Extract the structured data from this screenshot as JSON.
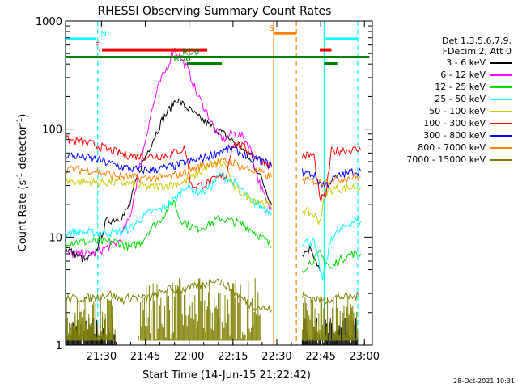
{
  "chart_data": {
    "type": "line",
    "title": "RHESSI Observing Summary Count Rates",
    "xlabel": "Start Time (14-Jun-15 21:22:42)",
    "ylabel": "Count Rate (s-1 detector-1)",
    "ylabel_parts": {
      "pre": "Count Rate (s",
      "sup1": "-1",
      "mid": " detector",
      "sup2": "-1",
      "post": ")"
    },
    "y_scale": "log",
    "ylim": [
      1,
      1000
    ],
    "xlim_min": [
      -5,
      100
    ],
    "x_ticks": [
      {
        "label": "21:30",
        "min": 7.3
      },
      {
        "label": "21:45",
        "min": 22.3
      },
      {
        "label": "22:00",
        "min": 37.3
      },
      {
        "label": "22:15",
        "min": 52.3
      },
      {
        "label": "22:30",
        "min": 67.3
      },
      {
        "label": "22:45",
        "min": 82.3
      },
      {
        "label": "23:00",
        "min": 97.3
      }
    ],
    "y_ticks": [
      "1",
      "10",
      "100",
      "1000"
    ],
    "legend_header": [
      "Det 1,3,5,6,7,9,",
      "FDecim 2, Att 0"
    ],
    "series": [
      {
        "name": "3 - 6 keV",
        "color": "#000000",
        "points": [
          [
            -5,
            8
          ],
          [
            2,
            6
          ],
          [
            5,
            7
          ],
          [
            7,
            10
          ],
          [
            9,
            14
          ],
          [
            13,
            15
          ],
          [
            15,
            16
          ],
          [
            17,
            20
          ],
          [
            20,
            40
          ],
          [
            24,
            70
          ],
          [
            28,
            120
          ],
          [
            31,
            160
          ],
          [
            33,
            190
          ],
          [
            35,
            170
          ],
          [
            37,
            155
          ],
          [
            40,
            130
          ],
          [
            44,
            110
          ],
          [
            48,
            95
          ],
          [
            52,
            78
          ],
          [
            55,
            70
          ],
          [
            58,
            52
          ],
          [
            61,
            40
          ],
          [
            64,
            26
          ],
          [
            65.5,
            20
          ],
          [
            76,
            7
          ],
          [
            79,
            8
          ],
          [
            82,
            5
          ]
        ]
      },
      {
        "name": "6 - 12 keV",
        "color": "#ff00ff",
        "points": [
          [
            -5,
            7
          ],
          [
            5,
            7
          ],
          [
            9,
            8
          ],
          [
            13,
            9
          ],
          [
            17,
            15
          ],
          [
            20,
            40
          ],
          [
            24,
            130
          ],
          [
            27,
            260
          ],
          [
            30,
            380
          ],
          [
            32,
            560
          ],
          [
            34,
            470
          ],
          [
            37,
            350
          ],
          [
            40,
            210
          ],
          [
            43,
            150
          ],
          [
            46,
            100
          ],
          [
            49,
            80
          ],
          [
            52,
            92
          ],
          [
            55,
            88
          ],
          [
            58,
            70
          ],
          [
            61,
            34
          ],
          [
            64,
            20
          ],
          [
            65.5,
            18
          ]
        ]
      },
      {
        "name": "12 - 25 keV",
        "color": "#00dd00",
        "points": [
          [
            -5,
            9
          ],
          [
            5,
            9
          ],
          [
            13,
            9
          ],
          [
            17,
            8
          ],
          [
            21,
            9
          ],
          [
            24,
            12
          ],
          [
            27,
            14
          ],
          [
            30,
            18
          ],
          [
            32,
            22
          ],
          [
            34,
            15
          ],
          [
            37,
            13
          ],
          [
            40,
            12
          ],
          [
            44,
            13
          ],
          [
            48,
            15
          ],
          [
            52,
            14
          ],
          [
            56,
            13
          ],
          [
            60,
            11
          ],
          [
            64,
            9
          ],
          [
            65.5,
            8
          ],
          [
            76,
            5
          ],
          [
            82,
            7
          ],
          [
            84,
            6
          ],
          [
            86,
            5
          ],
          [
            88,
            6
          ],
          [
            93,
            7
          ],
          [
            96,
            7
          ]
        ]
      },
      {
        "name": "25 - 50 keV",
        "color": "#00ffff",
        "points": [
          [
            -5,
            11
          ],
          [
            5,
            11
          ],
          [
            13,
            11
          ],
          [
            17,
            12
          ],
          [
            21,
            15
          ],
          [
            24,
            17
          ],
          [
            27,
            18
          ],
          [
            30,
            20
          ],
          [
            33,
            23
          ],
          [
            36,
            30
          ],
          [
            39,
            27
          ],
          [
            42,
            26
          ],
          [
            45,
            30
          ],
          [
            48,
            38
          ],
          [
            52,
            33
          ],
          [
            55,
            28
          ],
          [
            58,
            22
          ],
          [
            61,
            20
          ],
          [
            64,
            18
          ],
          [
            65.5,
            17
          ],
          [
            76,
            9
          ],
          [
            80,
            9
          ],
          [
            83,
            4
          ],
          [
            86,
            10
          ],
          [
            90,
            12
          ],
          [
            93,
            14
          ],
          [
            96,
            14
          ]
        ]
      },
      {
        "name": "50 - 100 keV",
        "color": "#cccc00",
        "points": [
          [
            -5,
            33
          ],
          [
            5,
            32
          ],
          [
            13,
            32
          ],
          [
            20,
            30
          ],
          [
            25,
            29
          ],
          [
            30,
            30
          ],
          [
            35,
            32
          ],
          [
            38,
            35
          ],
          [
            41,
            40
          ],
          [
            44,
            45
          ],
          [
            47,
            48
          ],
          [
            50,
            47
          ],
          [
            52,
            30
          ],
          [
            55,
            26
          ],
          [
            58,
            23
          ],
          [
            61,
            22
          ],
          [
            64,
            20
          ],
          [
            65.5,
            19
          ],
          [
            76,
            18
          ],
          [
            80,
            16
          ],
          [
            82,
            14
          ],
          [
            84,
            26
          ],
          [
            87,
            28
          ],
          [
            90,
            28
          ],
          [
            93,
            29
          ],
          [
            96,
            29
          ]
        ]
      },
      {
        "name": "100 - 300 keV",
        "color": "#ff0000",
        "points": [
          [
            -5,
            80
          ],
          [
            5,
            72
          ],
          [
            10,
            64
          ],
          [
            15,
            58
          ],
          [
            20,
            56
          ],
          [
            25,
            56
          ],
          [
            30,
            57
          ],
          [
            33,
            62
          ],
          [
            36,
            66
          ],
          [
            38,
            30
          ],
          [
            41,
            30
          ],
          [
            44,
            32
          ],
          [
            47,
            35
          ],
          [
            50,
            37
          ],
          [
            52,
            72
          ],
          [
            55,
            70
          ],
          [
            58,
            62
          ],
          [
            61,
            53
          ],
          [
            64,
            48
          ],
          [
            65.5,
            45
          ],
          [
            76,
            57
          ],
          [
            80,
            57
          ],
          [
            82,
            22
          ],
          [
            84,
            24
          ],
          [
            86,
            62
          ],
          [
            90,
            64
          ],
          [
            93,
            64
          ],
          [
            96,
            64
          ]
        ]
      },
      {
        "name": "300 - 800 keV",
        "color": "#0000ff",
        "points": [
          [
            -5,
            58
          ],
          [
            5,
            53
          ],
          [
            10,
            48
          ],
          [
            15,
            44
          ],
          [
            20,
            42
          ],
          [
            25,
            42
          ],
          [
            30,
            44
          ],
          [
            35,
            48
          ],
          [
            40,
            52
          ],
          [
            44,
            56
          ],
          [
            48,
            62
          ],
          [
            52,
            66
          ],
          [
            55,
            60
          ],
          [
            58,
            55
          ],
          [
            61,
            52
          ],
          [
            64,
            48
          ],
          [
            65.5,
            46
          ],
          [
            76,
            40
          ],
          [
            80,
            38
          ],
          [
            82,
            32
          ],
          [
            84,
            30
          ],
          [
            87,
            35
          ],
          [
            90,
            38
          ],
          [
            93,
            40
          ],
          [
            96,
            41
          ]
        ]
      },
      {
        "name": "800 - 7000 keV",
        "color": "#ff8000",
        "points": [
          [
            -5,
            43
          ],
          [
            5,
            41
          ],
          [
            10,
            38
          ],
          [
            15,
            36
          ],
          [
            20,
            35
          ],
          [
            25,
            35
          ],
          [
            30,
            36
          ],
          [
            35,
            39
          ],
          [
            40,
            44
          ],
          [
            44,
            48
          ],
          [
            48,
            50
          ],
          [
            52,
            50
          ],
          [
            55,
            45
          ],
          [
            58,
            42
          ],
          [
            61,
            40
          ],
          [
            64,
            37
          ],
          [
            65.5,
            36
          ],
          [
            76,
            34
          ],
          [
            80,
            33
          ],
          [
            82,
            32
          ],
          [
            84,
            33
          ],
          [
            87,
            34
          ],
          [
            90,
            35
          ],
          [
            93,
            36
          ],
          [
            96,
            36
          ]
        ]
      },
      {
        "name": "7000 - 15000 keV",
        "color": "#808000",
        "points": [
          [
            -5,
            2.7
          ],
          [
            2,
            2.7
          ],
          [
            6,
            2.8
          ],
          [
            10,
            3
          ],
          [
            14,
            2.6
          ],
          [
            18,
            2.8
          ],
          [
            22,
            2.7
          ],
          [
            26,
            2.9
          ],
          [
            30,
            3.3
          ],
          [
            34,
            3.2
          ],
          [
            38,
            3.4
          ],
          [
            42,
            3.6
          ],
          [
            46,
            4.1
          ],
          [
            50,
            3.6
          ],
          [
            54,
            2.9
          ],
          [
            58,
            2.4
          ],
          [
            62,
            2.2
          ],
          [
            65.5,
            2.1
          ],
          [
            76,
            2.9
          ],
          [
            80,
            2.7
          ],
          [
            84,
            2.6
          ],
          [
            88,
            2.8
          ],
          [
            92,
            2.8
          ],
          [
            96,
            2.8
          ]
        ]
      }
    ],
    "spikes": [
      {
        "color": "#000000",
        "start": -5,
        "end": 12,
        "low": 1,
        "high": 1.9
      },
      {
        "color": "#808000",
        "start": -5,
        "end": 12,
        "low": 1.1,
        "high": 2.9
      },
      {
        "color": "#808000",
        "start": 20,
        "end": 62,
        "low": 1.1,
        "high": 4.2
      },
      {
        "color": "#000000",
        "start": 76,
        "end": 95,
        "low": 1,
        "high": 1.8
      },
      {
        "color": "#808000",
        "start": 76,
        "end": 95,
        "low": 1.1,
        "high": 3.0
      }
    ],
    "flags": [
      {
        "label": "N",
        "color": "#00ffff",
        "y_frac": 0.055,
        "segments": [
          [
            -5,
            5.5
          ],
          [
            84,
            95
          ]
        ],
        "label_at": 7
      },
      {
        "label": "F",
        "color": "#ff0000",
        "y_frac": 0.09,
        "segments": [
          [
            6.5,
            6.8
          ],
          [
            7.5,
            43.5
          ],
          [
            82,
            86
          ]
        ],
        "label_at": 5
      },
      {
        "label": "S",
        "color": "#ff8000",
        "y_frac": 0.038,
        "segments": [
          [
            66.5,
            74
          ]
        ],
        "label_at": 64.5
      },
      {
        "label": "RD0",
        "color": "#008000",
        "y_frac": 0.111,
        "segments": [
          [
            -5,
            99
          ]
        ],
        "label_at": 35
      },
      {
        "label": "RD6",
        "color": "#008000",
        "y_frac": 0.131,
        "segments": [
          [
            36.5,
            48.5
          ],
          [
            83.5,
            88
          ]
        ],
        "label_at": 32
      }
    ],
    "vlines": [
      {
        "x": -5,
        "color": "#00ffff",
        "dash": false
      },
      {
        "x": 6,
        "color": "#00ffff",
        "dash": true
      },
      {
        "x": 66.2,
        "color": "#ff8000",
        "dash": false
      },
      {
        "x": 74,
        "color": "#ff8000",
        "dash": true
      },
      {
        "x": 83.5,
        "color": "#00ffff",
        "dash": false
      },
      {
        "x": 95,
        "color": "#00ffff",
        "dash": true
      }
    ],
    "gap": [
      65.5,
      76
    ],
    "timestamp": "28-Oct-2021 10:31"
  }
}
